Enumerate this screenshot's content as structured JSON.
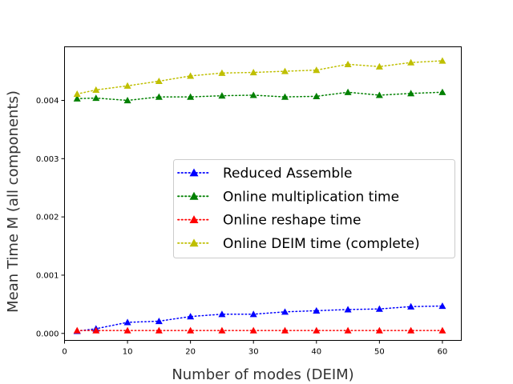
{
  "chart_data": {
    "type": "line",
    "title": "",
    "xlabel": "Number of modes (DEIM)",
    "ylabel": "Mean Time M (all components)",
    "xlim": [
      0,
      63
    ],
    "ylim": [
      -0.00012,
      0.00492
    ],
    "x": [
      2,
      5,
      10,
      15,
      20,
      25,
      30,
      35,
      40,
      45,
      50,
      55,
      60
    ],
    "x_ticks": [
      0,
      10,
      20,
      30,
      40,
      50,
      60
    ],
    "x_tick_labels": [
      "0",
      "10",
      "20",
      "30",
      "40",
      "50",
      "60"
    ],
    "y_ticks": [
      0.0,
      0.001,
      0.002,
      0.003,
      0.004
    ],
    "y_tick_labels": [
      "0.000",
      "0.001",
      "0.002",
      "0.003",
      "0.004"
    ],
    "grid": false,
    "legend_position": "center-right",
    "series": [
      {
        "name": "Reduced Assemble",
        "color": "#0000ff",
        "marker": "triangle-up",
        "linestyle": "dotted",
        "values": [
          4e-05,
          8e-05,
          0.00019,
          0.00021,
          0.00029,
          0.00033,
          0.00033,
          0.00037,
          0.00039,
          0.00041,
          0.00042,
          0.00046,
          0.00047
        ]
      },
      {
        "name": "Online multiplication time",
        "color": "#008000",
        "marker": "triangle-up",
        "linestyle": "dotted",
        "values": [
          0.00403,
          0.00404,
          0.004,
          0.00406,
          0.00406,
          0.00408,
          0.00409,
          0.00406,
          0.00407,
          0.00414,
          0.00409,
          0.00412,
          0.00414
        ]
      },
      {
        "name": "Online reshape time",
        "color": "#ff0000",
        "marker": "triangle-up",
        "linestyle": "dotted",
        "values": [
          5e-05,
          5e-05,
          5e-05,
          5e-05,
          5e-05,
          5e-05,
          5e-05,
          5e-05,
          5e-05,
          5e-05,
          5e-05,
          5e-05,
          5e-05
        ]
      },
      {
        "name": "Online DEIM time (complete)",
        "color": "#bfbf00",
        "marker": "triangle-up",
        "linestyle": "dotted",
        "values": [
          0.00411,
          0.00418,
          0.00425,
          0.00433,
          0.00442,
          0.00447,
          0.00448,
          0.0045,
          0.00452,
          0.00462,
          0.00458,
          0.00465,
          0.00468
        ]
      }
    ]
  }
}
